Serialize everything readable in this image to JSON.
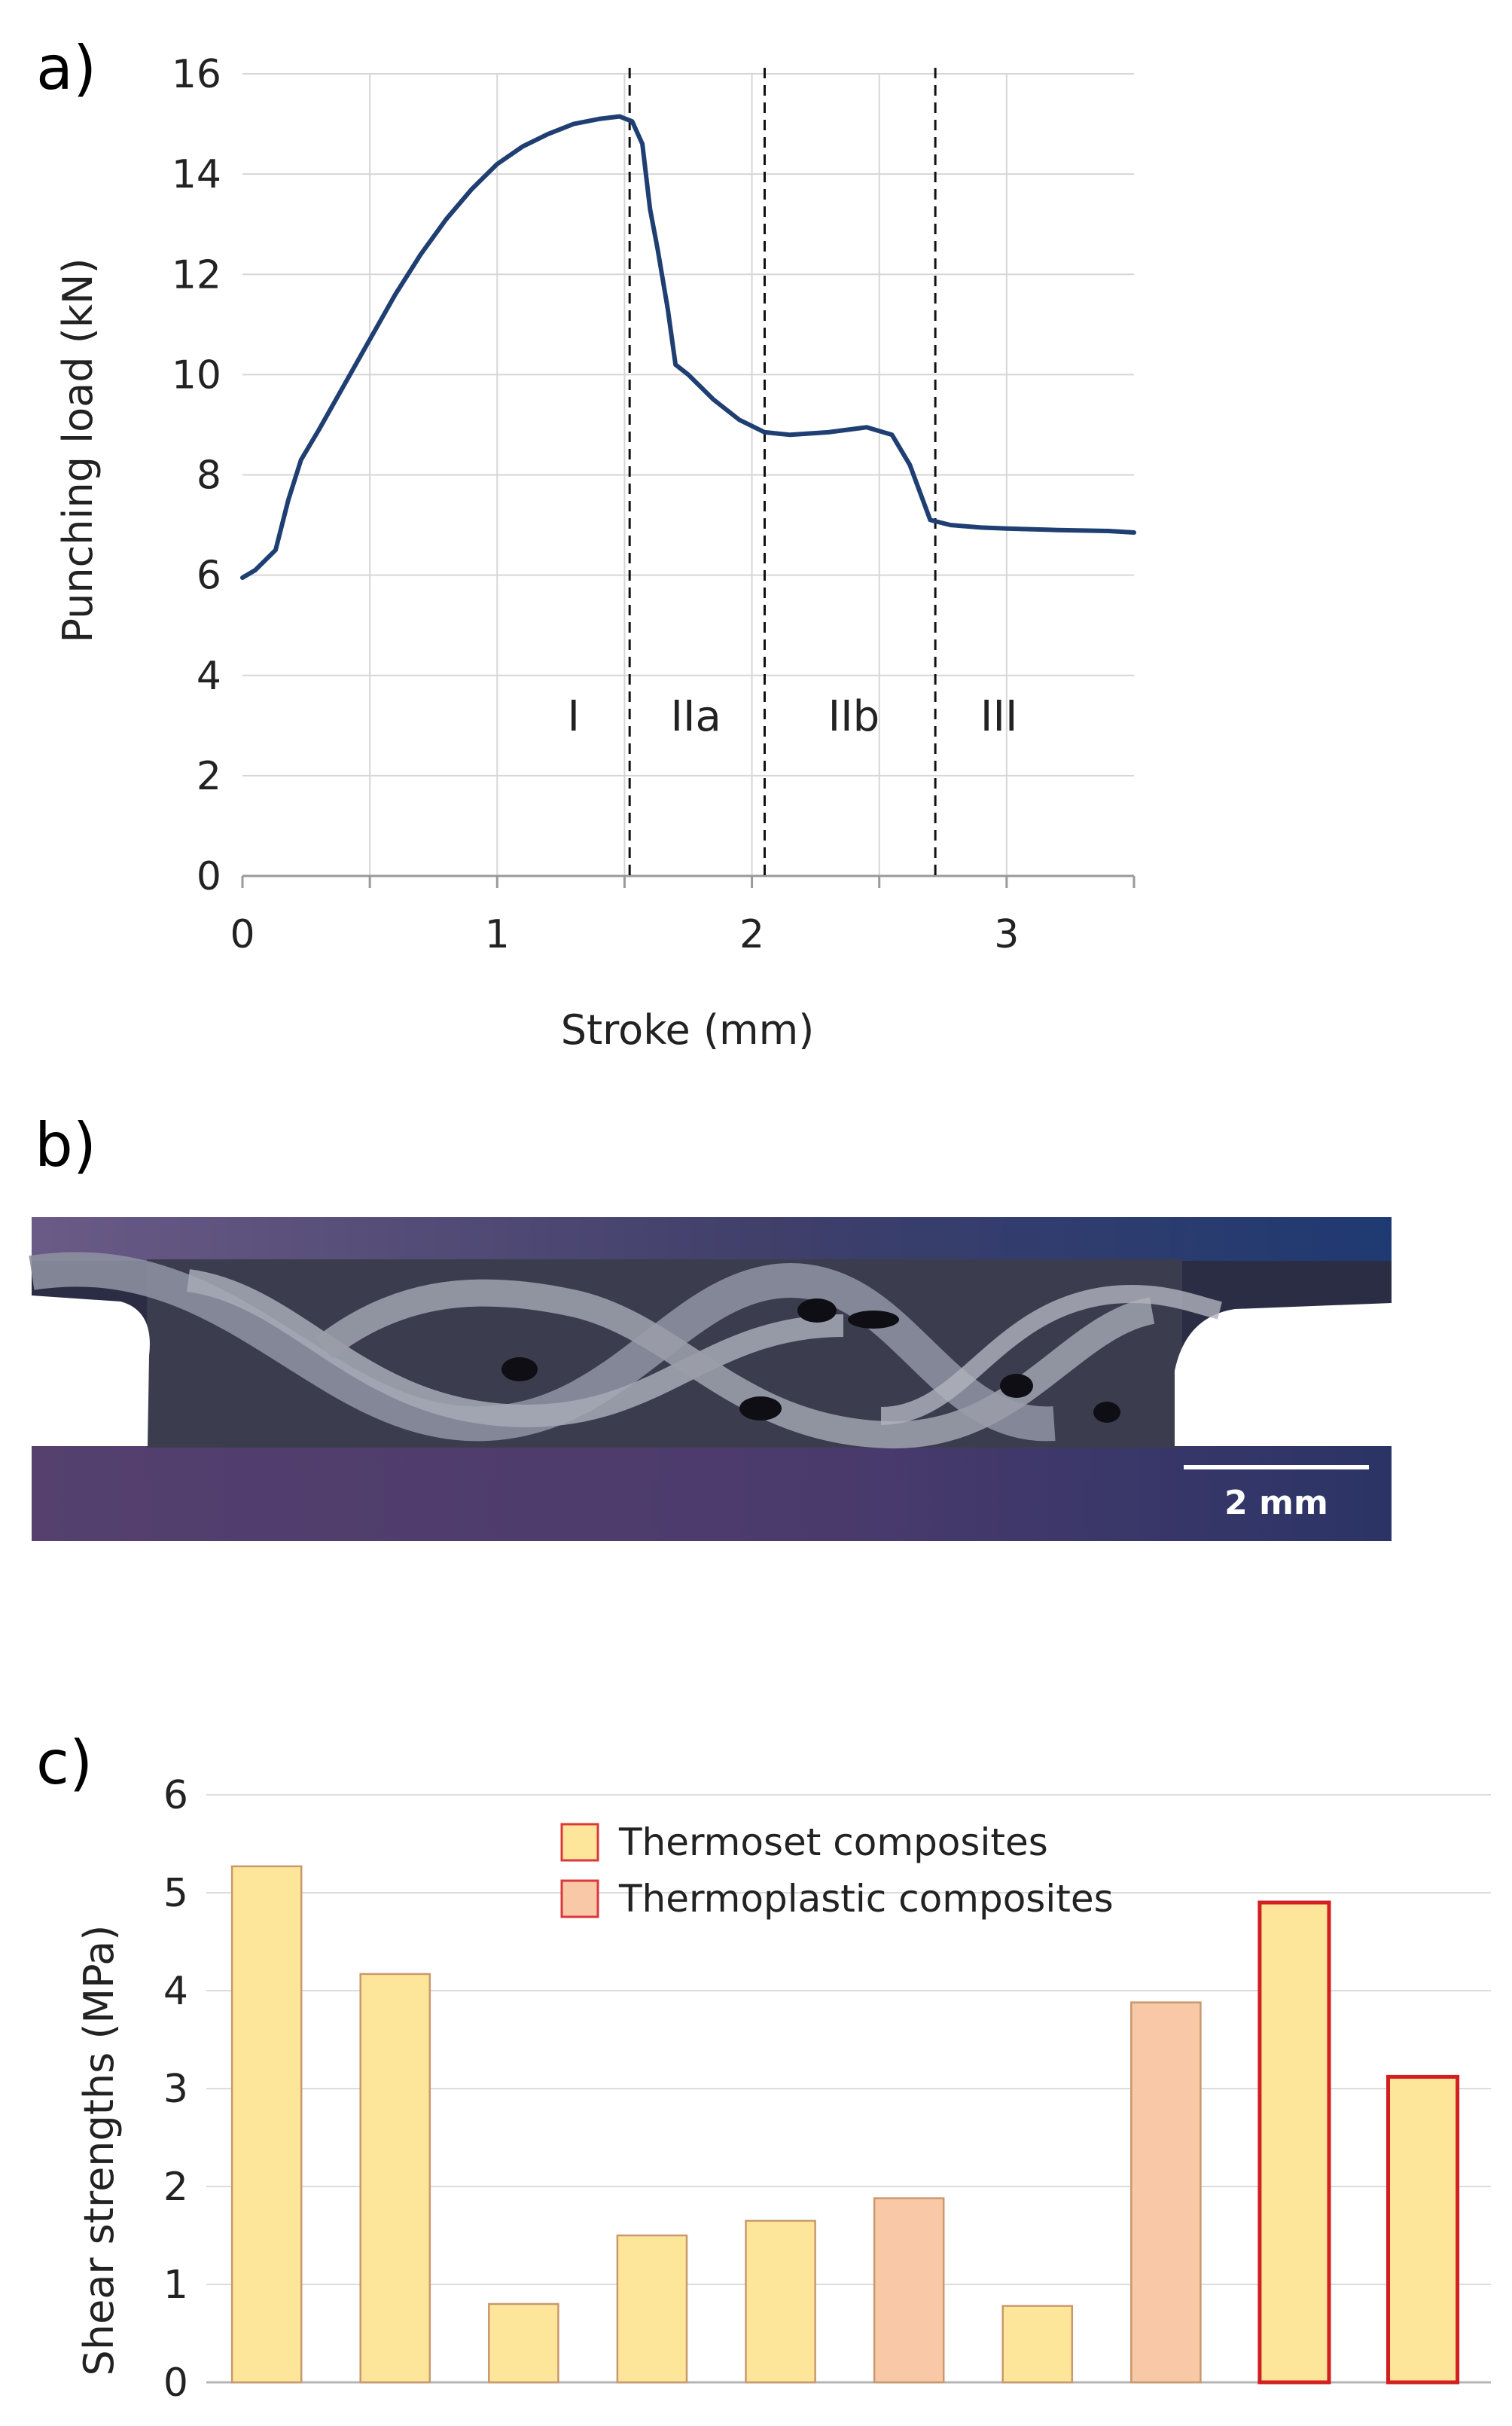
{
  "chart_data": [
    {
      "panel_label": "a)",
      "type": "line",
      "xlabel": "Stroke (mm)",
      "ylabel": "Punching load (kN)",
      "xlim": [
        0,
        3.5
      ],
      "ylim": [
        0,
        16
      ],
      "xticks": [
        "0",
        "1",
        "2",
        "3"
      ],
      "yticks": [
        "0",
        "2",
        "4",
        "6",
        "8",
        "10",
        "12",
        "14",
        "16"
      ],
      "grid": true,
      "line_color": "#1f3f73",
      "series": [
        {
          "x": [
            0,
            0.05,
            0.13,
            0.18,
            0.23,
            0.3,
            0.4,
            0.5,
            0.6,
            0.7,
            0.8,
            0.9,
            1.0,
            1.1,
            1.2,
            1.3,
            1.4,
            1.48,
            1.53,
            1.57,
            1.6,
            1.63,
            1.67,
            1.7,
            1.75,
            1.85,
            1.95,
            2.05,
            2.15,
            2.3,
            2.45,
            2.55,
            2.62,
            2.7,
            2.78,
            2.9,
            3.0,
            3.2,
            3.4,
            3.5
          ],
          "y": [
            5.95,
            6.1,
            6.5,
            7.5,
            8.3,
            8.9,
            9.8,
            10.7,
            11.6,
            12.4,
            13.1,
            13.7,
            14.2,
            14.55,
            14.8,
            15.0,
            15.1,
            15.15,
            15.05,
            14.6,
            13.3,
            12.5,
            11.3,
            10.2,
            10.0,
            9.5,
            9.1,
            8.85,
            8.8,
            8.85,
            8.95,
            8.8,
            8.2,
            7.1,
            7.0,
            6.95,
            6.93,
            6.9,
            6.88,
            6.85
          ]
        }
      ],
      "dividers": [
        1.52,
        2.05,
        2.72
      ],
      "regions": [
        {
          "label": "I",
          "x": 1.3
        },
        {
          "label": "IIa",
          "x": 1.78
        },
        {
          "label": "IIb",
          "x": 2.4
        },
        {
          "label": "III",
          "x": 2.97
        }
      ]
    },
    {
      "panel_label": "b)",
      "type": "image",
      "scale_bar": "2 mm"
    },
    {
      "panel_label": "c)",
      "type": "bar",
      "ylabel": "Shear strengths (MPa)",
      "ylim": [
        0,
        6
      ],
      "yticks": [
        "0",
        "1",
        "2",
        "3",
        "4",
        "5",
        "6"
      ],
      "grid": true,
      "legend_position": "top-center",
      "legend": [
        {
          "label": "Thermoset composites",
          "fill": "#fde699",
          "stroke": "#d9393b"
        },
        {
          "label": "Thermoplastic composites",
          "fill": "#f9c9a7",
          "stroke": "#d9393b"
        }
      ],
      "values": [
        5.27,
        4.17,
        0.8,
        1.5,
        1.65,
        1.88,
        0.78,
        3.88,
        4.9,
        3.12
      ],
      "bar_kinds": [
        "thermoset",
        "thermoset",
        "thermoset",
        "thermoset",
        "thermoset",
        "thermoplastic",
        "thermoset",
        "thermoplastic",
        "thermoset",
        "thermoset"
      ],
      "highlighted": [
        false,
        false,
        false,
        false,
        false,
        false,
        false,
        false,
        true,
        true
      ],
      "colors": {
        "thermoset_fill": "#fde699",
        "thermoplastic_fill": "#f9c9a7",
        "normal_stroke": "#c9986c",
        "highlight_stroke": "#d21f1f"
      }
    }
  ]
}
